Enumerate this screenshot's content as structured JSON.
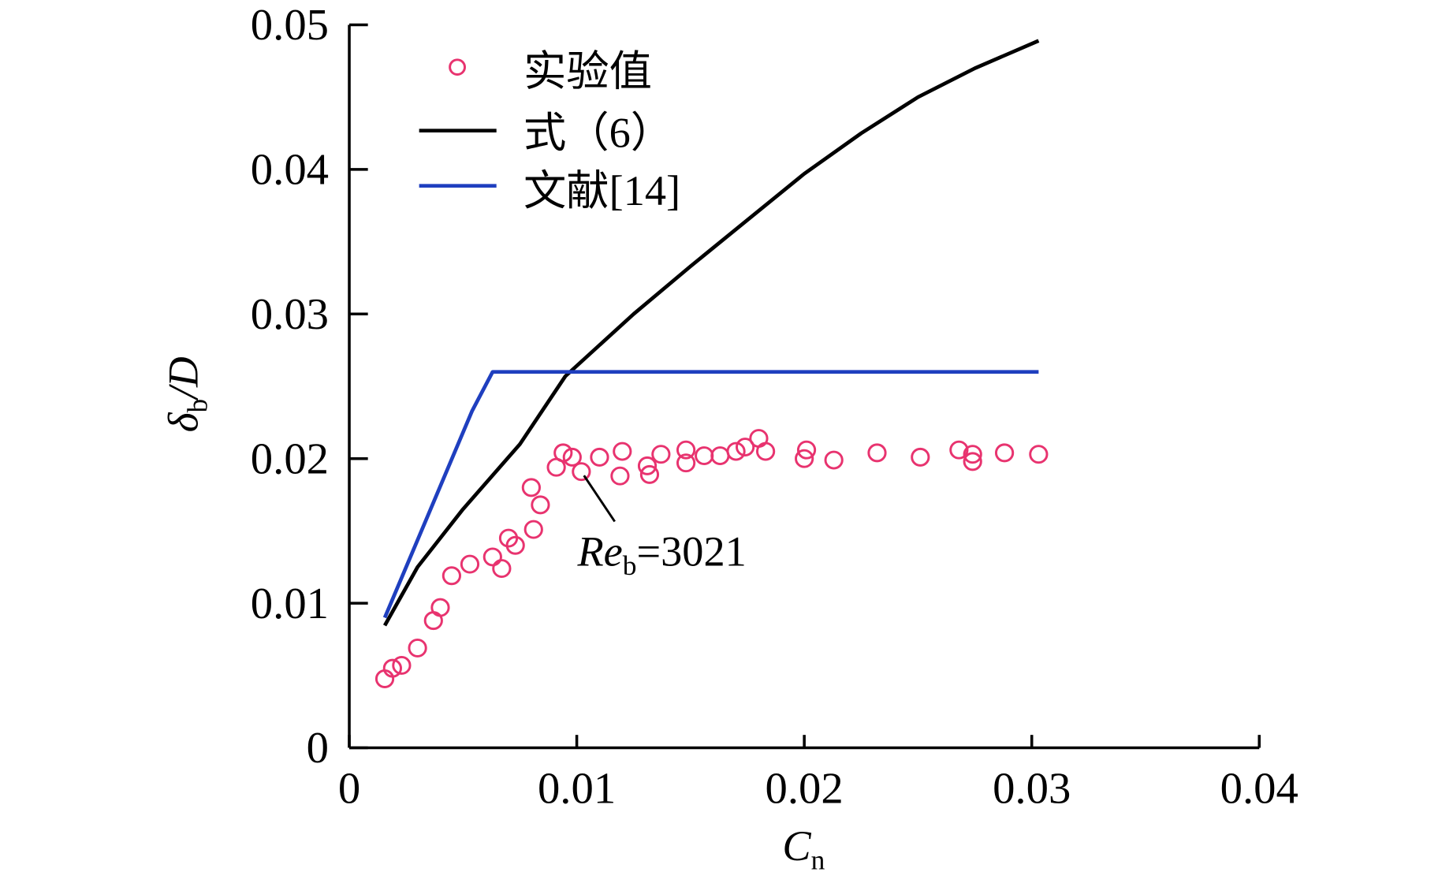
{
  "chart_data": {
    "type": "scatter",
    "title": "",
    "xlabel": "C",
    "xlabel_sub": "n",
    "ylabel": "δ",
    "ylabel_sub": "b",
    "ylabel_suffix": "/D",
    "xlim": [
      0,
      0.04
    ],
    "ylim": [
      0,
      0.05
    ],
    "xticks": [
      0,
      0.01,
      0.02,
      0.03,
      0.04
    ],
    "xtick_labels": [
      "0",
      "0.01",
      "0.02",
      "0.03",
      "0.04"
    ],
    "yticks": [
      0,
      0.01,
      0.02,
      0.03,
      0.04,
      0.05
    ],
    "ytick_labels": [
      "0",
      "0.01",
      "0.02",
      "0.03",
      "0.04",
      "0.05"
    ],
    "grid": false,
    "legend_position": "top-left",
    "series": [
      {
        "name": "实验值",
        "kind": "scatter",
        "color": "#e8336f",
        "x": [
          0.00156,
          0.0019,
          0.0023,
          0.003,
          0.0037,
          0.004,
          0.0045,
          0.0053,
          0.0063,
          0.0067,
          0.007,
          0.0073,
          0.0081,
          0.008,
          0.0084,
          0.0091,
          0.0094,
          0.0098,
          0.0102,
          0.011,
          0.012,
          0.0119,
          0.0131,
          0.0132,
          0.0137,
          0.0148,
          0.0148,
          0.0156,
          0.0163,
          0.017,
          0.0174,
          0.018,
          0.0183,
          0.0201,
          0.02,
          0.0213,
          0.0232,
          0.0251,
          0.0268,
          0.0274,
          0.0274,
          0.0288,
          0.0303
        ],
        "y": [
          0.00477,
          0.0055,
          0.0057,
          0.0069,
          0.0088,
          0.0097,
          0.0119,
          0.0127,
          0.0132,
          0.0124,
          0.0145,
          0.014,
          0.0151,
          0.018,
          0.0168,
          0.0194,
          0.0204,
          0.0201,
          0.0191,
          0.0201,
          0.0205,
          0.0188,
          0.0195,
          0.0189,
          0.0203,
          0.0206,
          0.0197,
          0.0202,
          0.0202,
          0.0205,
          0.0208,
          0.0214,
          0.0205,
          0.0206,
          0.02,
          0.0199,
          0.0204,
          0.0201,
          0.0206,
          0.0203,
          0.0198,
          0.0204,
          0.0203
        ]
      },
      {
        "name": "式（6）",
        "kind": "line",
        "color": "#000000",
        "x": [
          0.00156,
          0.003,
          0.005,
          0.0075,
          0.0095,
          0.0125,
          0.015,
          0.0175,
          0.02,
          0.0225,
          0.025,
          0.0275,
          0.0303
        ],
        "y": [
          0.00846,
          0.0125,
          0.0165,
          0.021,
          0.0257,
          0.03,
          0.0333,
          0.0365,
          0.0397,
          0.0425,
          0.045,
          0.047,
          0.0489
        ]
      },
      {
        "name": "文献[14]",
        "kind": "line",
        "color": "#1f3fbf",
        "x": [
          0.00156,
          0.0054,
          0.0063,
          0.0303
        ],
        "y": [
          0.009,
          0.0233,
          0.026,
          0.026
        ]
      }
    ],
    "annotations": [
      {
        "text_main": "Re",
        "text_sub": "b",
        "text_rest": "=3021",
        "point": [
          0.0102,
          0.0191
        ]
      }
    ]
  }
}
